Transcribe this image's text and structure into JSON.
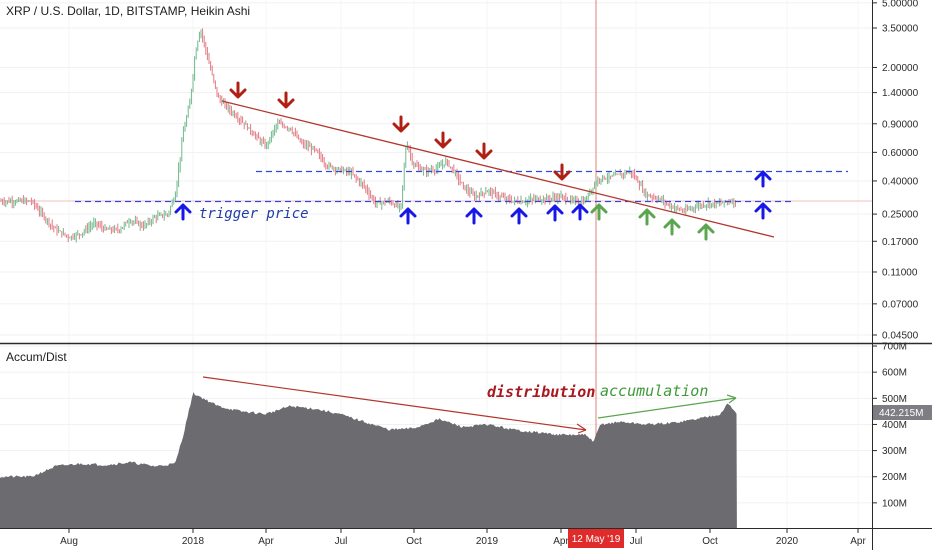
{
  "colors": {
    "background": "#ffffff",
    "candle_up": "#6fb88a",
    "candle_down": "#e07b84",
    "trendline": "#b3362c",
    "level_line": "#3248d6",
    "arrow_sell": "#b01f12",
    "arrow_buy": "#1717e8",
    "arrow_accum": "#5aa64e",
    "accdist_fill": "#6b6b70",
    "crosshair": "#e0807e",
    "date_tag": "#e02b2b",
    "value_tag": "#7d7d83"
  },
  "price_pane": {
    "title": "XRP / U.S. Dollar, 1D, BITSTAMP, Heikin Ashi",
    "trigger_label": "trigger price",
    "y_scale": "log",
    "y_ticks": [
      "5.00000",
      "3.50000",
      "2.00000",
      "1.40000",
      "0.90000",
      "0.60000",
      "0.40000",
      "0.25000",
      "0.17000",
      "0.11000",
      "0.07000",
      "0.04500"
    ]
  },
  "indicator_pane": {
    "title": "Accum/Dist",
    "distribution_label": "distribution",
    "accumulation_label": "accumulation",
    "y_ticks": [
      "700M",
      "600M",
      "500M",
      "400M",
      "300M",
      "200M",
      "100M"
    ],
    "last_value": "442.215M"
  },
  "x_axis": {
    "ticks": [
      "Aug",
      "2018",
      "Apr",
      "Jul",
      "Oct",
      "2019",
      "Apr",
      "Jul",
      "Oct",
      "2020",
      "Apr"
    ],
    "crosshair_label": "12 May '19"
  },
  "chart_data": [
    {
      "type": "line",
      "title": "XRP / U.S. Dollar, 1D, BITSTAMP, Heikin Ashi",
      "yscale": "log",
      "ylim": [
        0.04,
        5.0
      ],
      "x": [
        "2017-06-15",
        "2017-07-01",
        "2017-07-15",
        "2017-08-01",
        "2017-08-15",
        "2017-09-01",
        "2017-09-15",
        "2017-10-01",
        "2017-10-15",
        "2017-11-01",
        "2017-11-15",
        "2017-12-01",
        "2017-12-10",
        "2017-12-20",
        "2017-12-28",
        "2018-01-04",
        "2018-01-10",
        "2018-01-20",
        "2018-02-01",
        "2018-02-15",
        "2018-03-01",
        "2018-03-15",
        "2018-04-01",
        "2018-04-15",
        "2018-05-01",
        "2018-05-15",
        "2018-06-01",
        "2018-06-15",
        "2018-07-01",
        "2018-07-15",
        "2018-08-01",
        "2018-08-15",
        "2018-09-01",
        "2018-09-15",
        "2018-09-22",
        "2018-10-01",
        "2018-10-15",
        "2018-11-01",
        "2018-11-10",
        "2018-11-20",
        "2018-12-01",
        "2018-12-15",
        "2019-01-01",
        "2019-01-15",
        "2019-02-01",
        "2019-02-15",
        "2019-03-01",
        "2019-03-15",
        "2019-04-01",
        "2019-04-15",
        "2019-05-01",
        "2019-05-12",
        "2019-05-20",
        "2019-06-01",
        "2019-06-15",
        "2019-06-26",
        "2019-07-05",
        "2019-07-15",
        "2019-08-01",
        "2019-08-15",
        "2019-09-01",
        "2019-09-15",
        "2019-10-01",
        "2019-10-15",
        "2019-10-25",
        "2019-11-05"
      ],
      "series": [
        {
          "values": [
            0.3,
            0.24,
            0.2,
            0.18,
            0.19,
            0.22,
            0.2,
            0.2,
            0.23,
            0.21,
            0.24,
            0.25,
            0.33,
            0.8,
            1.2,
            2.5,
            3.5,
            2.2,
            1.3,
            1.1,
            0.95,
            0.8,
            0.65,
            0.9,
            0.85,
            0.68,
            0.62,
            0.5,
            0.47,
            0.45,
            0.37,
            0.29,
            0.3,
            0.27,
            0.7,
            0.5,
            0.46,
            0.48,
            0.53,
            0.46,
            0.37,
            0.32,
            0.35,
            0.32,
            0.3,
            0.3,
            0.31,
            0.31,
            0.32,
            0.3,
            0.3,
            0.38,
            0.42,
            0.42,
            0.44,
            0.46,
            0.4,
            0.33,
            0.31,
            0.28,
            0.26,
            0.28,
            0.29,
            0.29,
            0.3,
            0.3
          ]
        }
      ]
    },
    {
      "type": "area",
      "title": "Accum/Dist",
      "ylim": [
        0,
        700
      ],
      "x": [
        "2017-06-15",
        "2017-07-15",
        "2017-08-15",
        "2017-09-15",
        "2017-10-15",
        "2017-11-15",
        "2017-12-10",
        "2017-12-20",
        "2018-01-01",
        "2018-02-01",
        "2018-03-01",
        "2018-04-01",
        "2018-05-01",
        "2018-06-01",
        "2018-07-01",
        "2018-08-01",
        "2018-09-01",
        "2018-10-01",
        "2018-11-01",
        "2018-12-01",
        "2019-01-01",
        "2019-02-01",
        "2019-03-01",
        "2019-04-01",
        "2019-05-01",
        "2019-05-12",
        "2019-05-20",
        "2019-06-15",
        "2019-07-15",
        "2019-08-15",
        "2019-09-15",
        "2019-10-15",
        "2019-10-25",
        "2019-11-05"
      ],
      "series": [
        {
          "values": [
            200,
            240,
            250,
            245,
            255,
            240,
            250,
            360,
            520,
            470,
            450,
            440,
            470,
            460,
            440,
            410,
            380,
            385,
            420,
            390,
            400,
            380,
            370,
            360,
            360,
            335,
            400,
            410,
            400,
            405,
            420,
            440,
            480,
            440
          ]
        }
      ]
    }
  ]
}
